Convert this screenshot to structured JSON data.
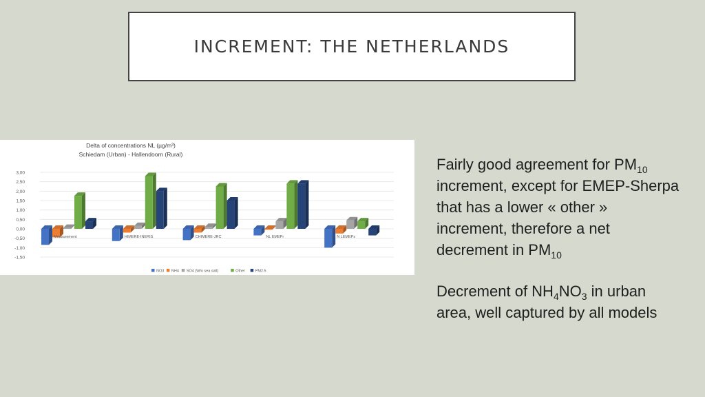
{
  "slide": {
    "title": "INCREMENT: THE NETHERLANDS",
    "text": {
      "p1_a": "Fairly good agreement for PM",
      "p1_sub_a": "10",
      "p1_b": "increment, except for EMEP-Sherpa",
      "p1_c": "that has a lower « other »",
      "p1_d": "increment, therefore a net",
      "p1_e": "decrement in PM",
      "p1_sub_e": "10",
      "p2_a": "Decrement of NH",
      "p2_sub_a": "4",
      "p2_b": "NO",
      "p2_sub_b": "3",
      "p2_c": " in urban",
      "p2_d": "area, well captured by all models"
    }
  },
  "chart_data": {
    "type": "bar",
    "title": "Delta of concentrations NL (µg/m³)",
    "subtitle": "Schiedam (Urban) - Hallendoorn (Rural)",
    "categories": [
      "Measurement",
      "CHIMERE-INERIS",
      "CHIMERE-JRC",
      "NL EMEPr",
      "NL LEMEPs"
    ],
    "category_labels_visible": [
      "Measurement",
      "HIMERE-INERIS",
      "CHIMERE-JRC",
      "NL EMEPr",
      "N LEMEPs"
    ],
    "series": [
      {
        "name": "NO3",
        "color": "#4472c4",
        "values": [
          -0.85,
          -0.65,
          -0.6,
          -0.35,
          -1.0
        ]
      },
      {
        "name": "NH4",
        "color": "#ed7d31",
        "values": [
          -0.45,
          -0.2,
          -0.2,
          -0.05,
          -0.25
        ]
      },
      {
        "name": "SO4 (W/o sea salt)",
        "color": "#a5a5a5",
        "values": [
          0.05,
          0.15,
          0.1,
          0.4,
          0.45
        ]
      },
      {
        "name": "Other",
        "color": "#70ad47",
        "values": [
          1.75,
          2.8,
          2.25,
          2.4,
          0.4
        ]
      },
      {
        "name": "PM2.5",
        "color": "#264478",
        "values": [
          0.4,
          2.0,
          1.5,
          2.4,
          -0.35
        ]
      }
    ],
    "yticks": [
      "3,00",
      "2,50",
      "2,00",
      "1,50",
      "1,00",
      "0,50",
      "0,00",
      "-0,50",
      "-1,00",
      "-1,50"
    ],
    "ylim": [
      -1.5,
      3.0
    ],
    "grid": true,
    "legend_position": "bottom"
  }
}
